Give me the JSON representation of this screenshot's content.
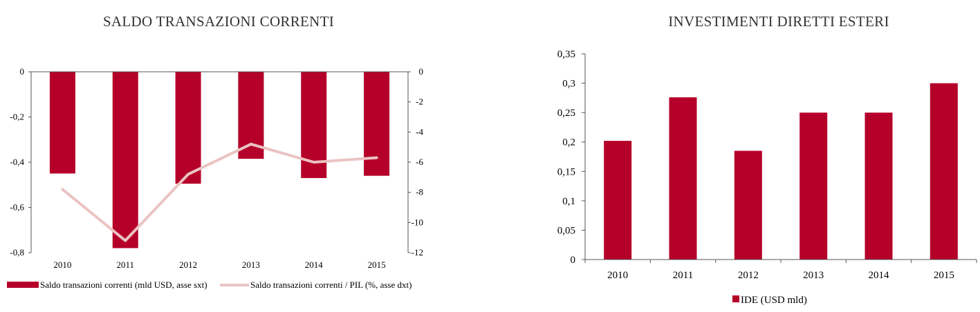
{
  "chart_data": [
    {
      "type": "bar",
      "title": "SALDO TRANSAZIONI CORRENTI",
      "categories": [
        "2010",
        "2011",
        "2012",
        "2013",
        "2014",
        "2015"
      ],
      "series": [
        {
          "name": "Saldo transazioni correnti (mld USD, asse sxt)",
          "type": "bar",
          "axis": "left",
          "color": "#b5002a",
          "values": [
            -0.45,
            -0.78,
            -0.495,
            -0.385,
            -0.47,
            -0.46
          ]
        },
        {
          "name": "Saldo transazioni correnti / PIL (%, asse dxt)",
          "type": "line",
          "axis": "right",
          "color": "#ebc3c3",
          "values": [
            -7.8,
            -11.2,
            -6.8,
            -4.8,
            -6.0,
            -5.7
          ]
        }
      ],
      "ylim_left": [
        -0.8,
        0
      ],
      "yticks_left": [
        "0",
        "-0,2",
        "-0,4",
        "-0,6",
        "-0,8"
      ],
      "ylim_right": [
        -12,
        0
      ],
      "yticks_right": [
        "0",
        "-2",
        "-4",
        "-6",
        "-8",
        "-10",
        "-12"
      ],
      "legend_position": "bottom"
    },
    {
      "type": "bar",
      "title": "INVESTIMENTI DIRETTI ESTERI",
      "categories": [
        "2010",
        "2011",
        "2012",
        "2013",
        "2014",
        "2015"
      ],
      "series": [
        {
          "name": "IDE (USD mld)",
          "color": "#b5002a",
          "values": [
            0.202,
            0.276,
            0.185,
            0.25,
            0.25,
            0.3
          ]
        }
      ],
      "ylim": [
        0,
        0.35
      ],
      "yticks": [
        "0",
        "0,05",
        "0,1",
        "0,15",
        "0,2",
        "0,25",
        "0,3",
        "0,35"
      ],
      "legend_position": "bottom"
    }
  ]
}
